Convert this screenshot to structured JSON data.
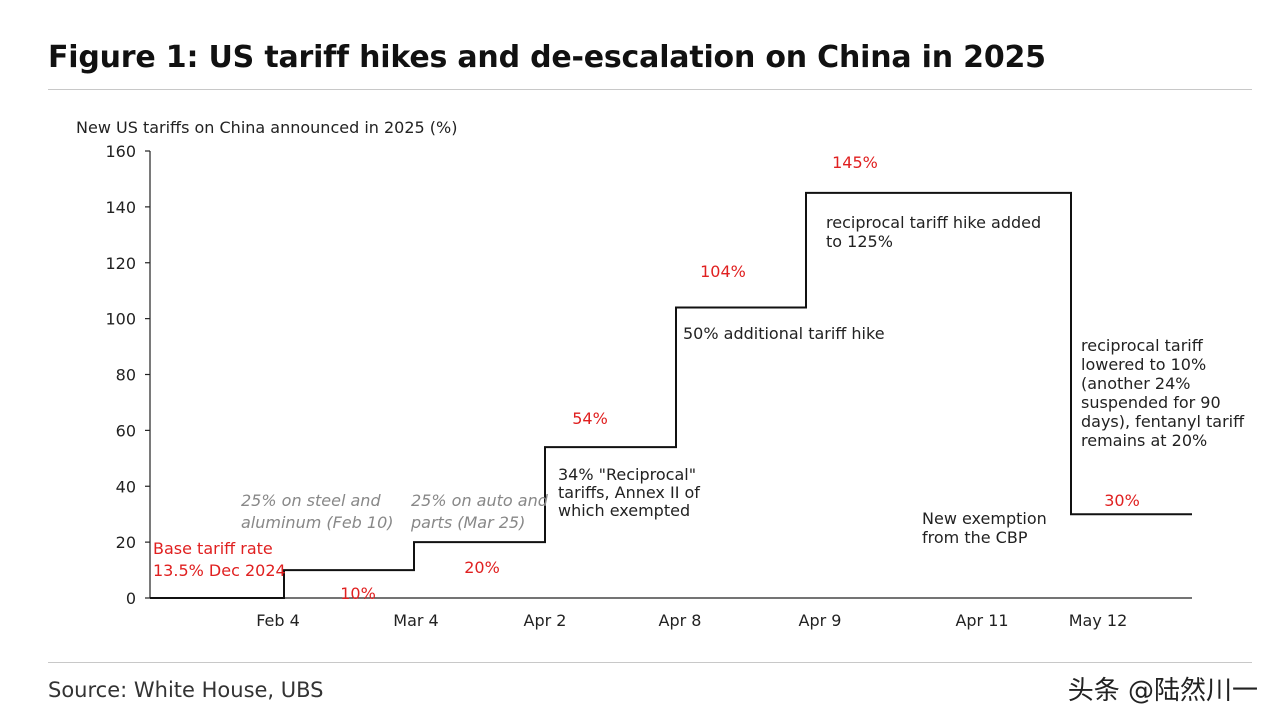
{
  "header": {
    "title": "Figure 1: US tariff hikes and de-escalation on China in 2025"
  },
  "footer": {
    "source": "Source: White House, UBS",
    "watermark": "头条 @陆然川一"
  },
  "colors": {
    "line": "#111111",
    "value_label": "#e02020",
    "muted_note": "#888888",
    "axis": "#222222"
  },
  "chart_data": {
    "type": "line",
    "step": true,
    "ylabel": "New US tariffs on China announced in 2025 (%)",
    "ylim": [
      0,
      160
    ],
    "yticks": [
      0,
      20,
      40,
      60,
      80,
      100,
      120,
      140,
      160
    ],
    "x_ticks": [
      "Feb 4",
      "Mar 4",
      "Apr 2",
      "Apr 8",
      "Apr 9",
      "Apr 11",
      "May 12"
    ],
    "steps": [
      {
        "start": "",
        "end": "Feb 4",
        "value": 0
      },
      {
        "start": "Feb 4",
        "end": "Mar 4",
        "value": 10
      },
      {
        "start": "Mar 4",
        "end": "Apr 2",
        "value": 20
      },
      {
        "start": "Apr 2",
        "end": "Apr 8",
        "value": 54
      },
      {
        "start": "Apr 8",
        "end": "Apr 9",
        "value": 104
      },
      {
        "start": "Apr 9",
        "end": "May 12",
        "value": 145
      },
      {
        "start": "May 12",
        "end": "",
        "value": 30
      }
    ],
    "value_labels": [
      "10%",
      "20%",
      "54%",
      "104%",
      "145%",
      "30%"
    ],
    "base_label": [
      "Base tariff rate",
      "13.5% Dec 2024"
    ],
    "annotations": [
      {
        "lines": [
          "25% on steel and",
          "aluminum (Feb 10)"
        ],
        "style": "muted"
      },
      {
        "lines": [
          "25% on auto and",
          "parts (Mar 25)"
        ],
        "style": "muted"
      },
      {
        "lines": [
          "34% \"Reciprocal\"",
          "tariffs, Annex II of",
          "which exempted"
        ],
        "style": "normal"
      },
      {
        "lines": [
          "50% additional tariff hike"
        ],
        "style": "normal"
      },
      {
        "lines": [
          "reciprocal tariff hike added",
          "to 125%"
        ],
        "style": "normal"
      },
      {
        "lines": [
          "New exemption",
          "from the CBP"
        ],
        "style": "normal"
      },
      {
        "lines": [
          "reciprocal tariff",
          "lowered to 10%",
          "(another 24%",
          "suspended for 90",
          "days), fentanyl tariff",
          "remains at 20%"
        ],
        "style": "normal"
      }
    ]
  }
}
